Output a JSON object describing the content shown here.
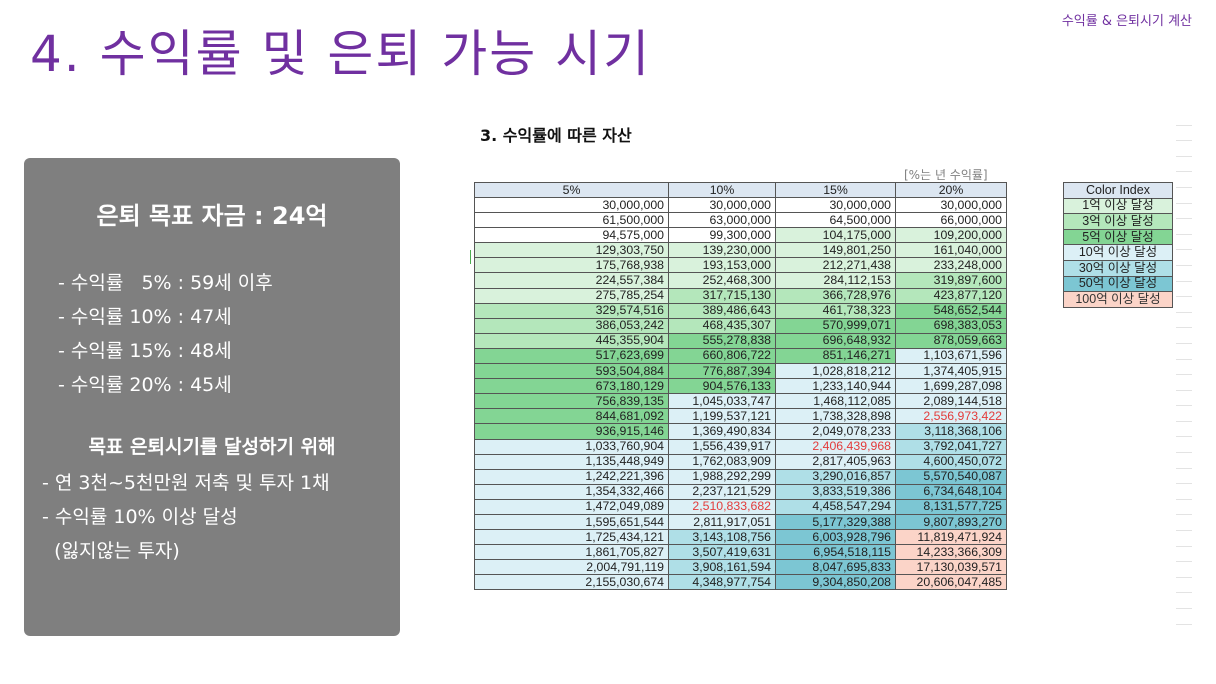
{
  "header": {
    "title": "4. 수익률 및 은퇴 가능 시기",
    "tag": "수익률 & 은퇴시기 계산"
  },
  "summary": {
    "title": "은퇴 목표 자금 : 24억",
    "rates": [
      "- 수익률   5% : 59세 이후",
      "- 수익률 10% : 47세",
      "- 수익률 15% : 48세",
      "- 수익률 20% : 45세"
    ],
    "goal_title": "목표 은퇴시기를 달성하기 위해",
    "goals": [
      "- 연 3천~5천만원 저축 및 투자 1채",
      "- 수익률 10% 이상 달성",
      "  (잃지않는 투자)"
    ]
  },
  "section": {
    "title": "3. 수익률에 따른 자산",
    "unit_note": "[%는 년 수익률]"
  },
  "table": {
    "headers": [
      "5%",
      "10%",
      "15%",
      "20%"
    ],
    "rows": [
      [
        [
          "30,000,000",
          0
        ],
        [
          "30,000,000",
          0
        ],
        [
          "30,000,000",
          0
        ],
        [
          "30,000,000",
          0
        ]
      ],
      [
        [
          "61,500,000",
          0
        ],
        [
          "63,000,000",
          0
        ],
        [
          "64,500,000",
          0
        ],
        [
          "66,000,000",
          0
        ]
      ],
      [
        [
          "94,575,000",
          0
        ],
        [
          "99,300,000",
          0
        ],
        [
          "104,175,000",
          1
        ],
        [
          "109,200,000",
          1
        ]
      ],
      [
        [
          "129,303,750",
          1
        ],
        [
          "139,230,000",
          1
        ],
        [
          "149,801,250",
          1
        ],
        [
          "161,040,000",
          1
        ]
      ],
      [
        [
          "175,768,938",
          1
        ],
        [
          "193,153,000",
          1
        ],
        [
          "212,271,438",
          1
        ],
        [
          "233,248,000",
          1
        ]
      ],
      [
        [
          "224,557,384",
          1
        ],
        [
          "252,468,300",
          1
        ],
        [
          "284,112,153",
          1
        ],
        [
          "319,897,600",
          2
        ]
      ],
      [
        [
          "275,785,254",
          1
        ],
        [
          "317,715,130",
          2
        ],
        [
          "366,728,976",
          2
        ],
        [
          "423,877,120",
          2
        ]
      ],
      [
        [
          "329,574,516",
          2
        ],
        [
          "389,486,643",
          2
        ],
        [
          "461,738,323",
          2
        ],
        [
          "548,652,544",
          3
        ]
      ],
      [
        [
          "386,053,242",
          2
        ],
        [
          "468,435,307",
          2
        ],
        [
          "570,999,071",
          3
        ],
        [
          "698,383,053",
          3
        ]
      ],
      [
        [
          "445,355,904",
          2
        ],
        [
          "555,278,838",
          3
        ],
        [
          "696,648,932",
          3
        ],
        [
          "878,059,663",
          3
        ]
      ],
      [
        [
          "517,623,699",
          3
        ],
        [
          "660,806,722",
          3
        ],
        [
          "851,146,271",
          3
        ],
        [
          "1,103,671,596",
          4
        ]
      ],
      [
        [
          "593,504,884",
          3
        ],
        [
          "776,887,394",
          3
        ],
        [
          "1,028,818,212",
          4
        ],
        [
          "1,374,405,915",
          4
        ]
      ],
      [
        [
          "673,180,129",
          3
        ],
        [
          "904,576,133",
          3
        ],
        [
          "1,233,140,944",
          4
        ],
        [
          "1,699,287,098",
          4
        ]
      ],
      [
        [
          "756,839,135",
          3
        ],
        [
          "1,045,033,747",
          4
        ],
        [
          "1,468,112,085",
          4
        ],
        [
          "2,089,144,518",
          4
        ]
      ],
      [
        [
          "844,681,092",
          3
        ],
        [
          "1,199,537,121",
          4
        ],
        [
          "1,738,328,898",
          4
        ],
        [
          "2,556,973,422",
          4,
          1
        ]
      ],
      [
        [
          "936,915,146",
          3
        ],
        [
          "1,369,490,834",
          4
        ],
        [
          "2,049,078,233",
          4
        ],
        [
          "3,118,368,106",
          5
        ]
      ],
      [
        [
          "1,033,760,904",
          4
        ],
        [
          "1,556,439,917",
          4
        ],
        [
          "2,406,439,968",
          4,
          1
        ],
        [
          "3,792,041,727",
          5
        ]
      ],
      [
        [
          "1,135,448,949",
          4
        ],
        [
          "1,762,083,909",
          4
        ],
        [
          "2,817,405,963",
          4
        ],
        [
          "4,600,450,072",
          5
        ]
      ],
      [
        [
          "1,242,221,396",
          4
        ],
        [
          "1,988,292,299",
          4
        ],
        [
          "3,290,016,857",
          5
        ],
        [
          "5,570,540,087",
          6
        ]
      ],
      [
        [
          "1,354,332,466",
          4
        ],
        [
          "2,237,121,529",
          4
        ],
        [
          "3,833,519,386",
          5
        ],
        [
          "6,734,648,104",
          6
        ]
      ],
      [
        [
          "1,472,049,089",
          4
        ],
        [
          "2,510,833,682",
          4,
          1
        ],
        [
          "4,458,547,294",
          5
        ],
        [
          "8,131,577,725",
          6
        ]
      ],
      [
        [
          "1,595,651,544",
          4
        ],
        [
          "2,811,917,051",
          4
        ],
        [
          "5,177,329,388",
          6
        ],
        [
          "9,807,893,270",
          6
        ]
      ],
      [
        [
          "1,725,434,121",
          4
        ],
        [
          "3,143,108,756",
          5
        ],
        [
          "6,003,928,796",
          6
        ],
        [
          "11,819,471,924",
          7
        ]
      ],
      [
        [
          "1,861,705,827",
          4
        ],
        [
          "3,507,419,631",
          5
        ],
        [
          "6,954,518,115",
          6
        ],
        [
          "14,233,366,309",
          7
        ]
      ],
      [
        [
          "2,004,791,119",
          4
        ],
        [
          "3,908,161,594",
          5
        ],
        [
          "8,047,695,833",
          6
        ],
        [
          "17,130,039,571",
          7
        ]
      ],
      [
        [
          "2,155,030,674",
          4
        ],
        [
          "4,348,977,754",
          5
        ],
        [
          "9,304,850,208",
          6
        ],
        [
          "20,606,047,485",
          7
        ]
      ]
    ]
  },
  "legend": {
    "items": [
      {
        "label": "Color Index",
        "color": "#dce6f1"
      },
      {
        "label": "1억 이상 달성",
        "color": "#d9f2dc"
      },
      {
        "label": "3억 이상 달성",
        "color": "#b4e7bb"
      },
      {
        "label": "5억 이상 달성",
        "color": "#83d594"
      },
      {
        "label": "10억 이상 달성",
        "color": "#dcf0f6"
      },
      {
        "label": "30억 이상 달성",
        "color": "#afdfe7"
      },
      {
        "label": "50억 이상 달성",
        "color": "#7cc6d3"
      },
      {
        "label": "100억 이상 달성",
        "color": "#fbd4c8"
      }
    ]
  }
}
